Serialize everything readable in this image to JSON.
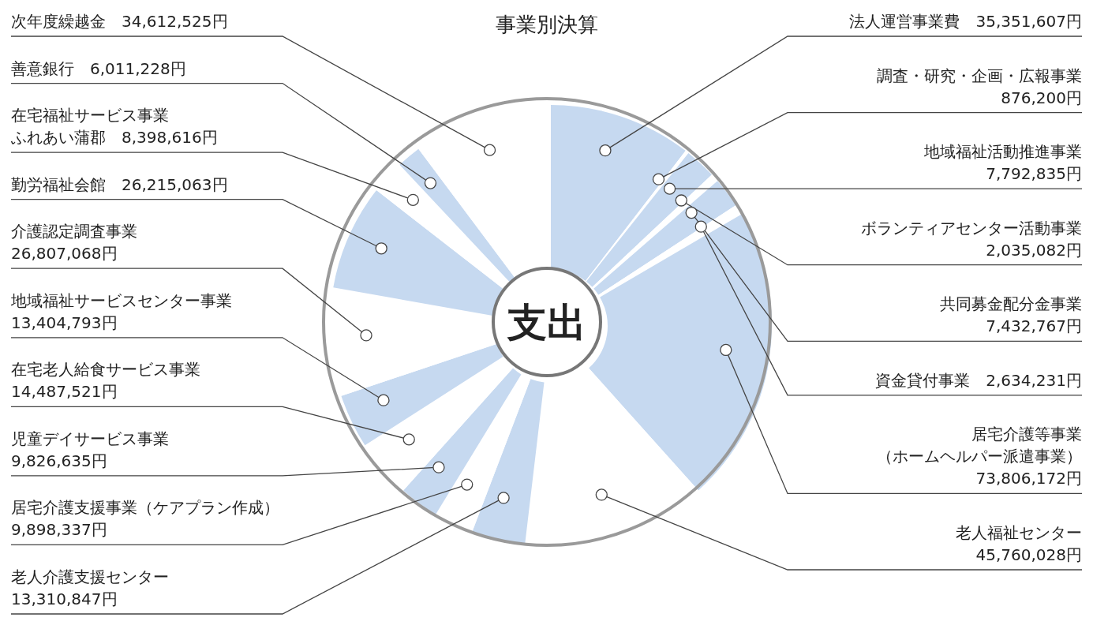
{
  "chart_data": {
    "type": "donut",
    "title": "事業別決算",
    "annotations": [
      "支出"
    ],
    "categories": [
      "法人運営事業費",
      "調査・研究・企画・広報事業",
      "地域福祉活動推進事業",
      "ボランティアセンター活動事業",
      "共同募金配分金事業",
      "資金貸付事業",
      "居宅介護等事業（ホームヘルパー派遣事業）",
      "老人福祉センター",
      "老人介護支援センター",
      "居宅介護支援事業（ケアプラン作成）",
      "児童デイサービス事業",
      "在宅老人給食サービス事業",
      "地域福祉サービスセンター事業",
      "介護認定調査事業",
      "勤労福祉会館",
      "在宅福祉サービス事業ふれあい蒲郡",
      "善意銀行",
      "次年度繰越金"
    ],
    "values": [
      35351607,
      876200,
      7792835,
      2035082,
      7432767,
      2634231,
      73806172,
      45760028,
      13310847,
      9898337,
      9826635,
      14487521,
      13404793,
      26807068,
      26215063,
      8398616,
      6011228,
      34612525
    ],
    "value_labels": [
      "35,351,607円",
      "876,200円",
      "7,792,835円",
      "2,035,082円",
      "7,432,767円",
      "2,634,231円",
      "73,806,172円",
      "45,760,028円",
      "13,310,847円",
      "9,898,337円",
      "9,826,635円",
      "14,487,521円",
      "13,404,793円",
      "26,807,068円",
      "26,215,063円",
      "8,398,616円",
      "6,011,228円",
      "34,612,525円"
    ],
    "colors": [
      "#c6d9f0",
      "#ffffff",
      "#c6d9f0",
      "#ffffff",
      "#c6d9f0",
      "#ffffff",
      "#c6d9f0",
      "#ffffff",
      "#c6d9f0",
      "#ffffff",
      "#c6d9f0",
      "#ffffff",
      "#c6d9f0",
      "#ffffff",
      "#c6d9f0",
      "#ffffff",
      "#c6d9f0",
      "#ffffff"
    ]
  }
}
